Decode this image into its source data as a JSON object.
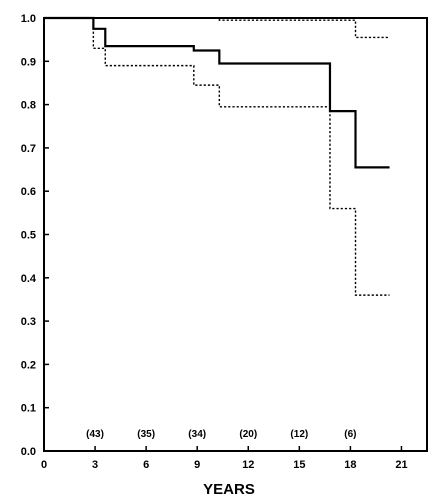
{
  "chart_data": {
    "type": "line",
    "title": "",
    "xlabel": "YEARS",
    "ylabel": "",
    "xlim": [
      0,
      22.5
    ],
    "ylim": [
      0,
      1.0
    ],
    "x_ticks": [
      "0",
      "3",
      "6",
      "9",
      "12",
      "15",
      "18",
      "21"
    ],
    "y_ticks": [
      "0.0",
      "0.1",
      "0.2",
      "0.3",
      "0.4",
      "0.5",
      "0.6",
      "0.7",
      "0.8",
      "0.9",
      "1.0"
    ],
    "grid": false,
    "series": [
      {
        "style": "solid",
        "step": true,
        "x": [
          0,
          2.9,
          3.6,
          8.8,
          10.3,
          16.8,
          18.3,
          20.3
        ],
        "y": [
          1.0,
          0.975,
          0.935,
          0.925,
          0.895,
          0.785,
          0.655,
          0.655
        ]
      },
      {
        "style": "dotted",
        "step": true,
        "x": [
          0,
          2.9,
          10.3,
          18.3,
          20.3
        ],
        "y": [
          1.0,
          1.0,
          0.995,
          0.955,
          0.955
        ]
      },
      {
        "style": "dotted",
        "step": true,
        "x": [
          0,
          2.9,
          3.6,
          8.8,
          10.3,
          16.8,
          18.3,
          20.3
        ],
        "y": [
          1.0,
          0.93,
          0.89,
          0.845,
          0.795,
          0.56,
          0.36,
          0.36
        ]
      }
    ],
    "annotations": [
      {
        "x": 3,
        "text": "(43)"
      },
      {
        "x": 6,
        "text": "(35)"
      },
      {
        "x": 9,
        "text": "(34)"
      },
      {
        "x": 12,
        "text": "(20)"
      },
      {
        "x": 15,
        "text": "(12)"
      },
      {
        "x": 18,
        "text": "(6)"
      }
    ]
  }
}
